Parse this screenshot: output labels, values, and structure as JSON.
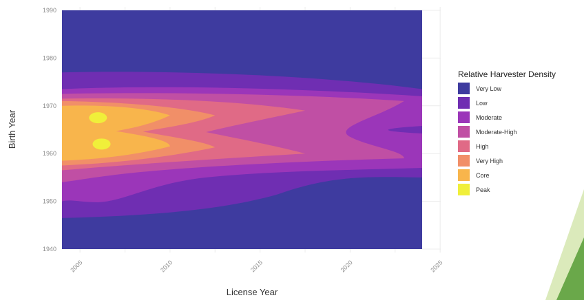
{
  "chart_data": {
    "type": "heatmap",
    "subtype": "2d-density-contour",
    "title": "",
    "xlabel": "License Year",
    "ylabel": "Birth Year",
    "xlim": [
      2004,
      2024
    ],
    "ylim": [
      1940,
      1990
    ],
    "x_ticks": [
      2005,
      2010,
      2015,
      2020,
      2025
    ],
    "y_ticks": [
      1940,
      1950,
      1960,
      1970,
      1980,
      1990
    ],
    "x_tick_rotation": "45 degrees",
    "grid": true,
    "legend": {
      "title": "Relative Harvester Density",
      "placement": "right",
      "levels": [
        {
          "label": "Very Low",
          "color": "#3e3b9f"
        },
        {
          "label": "Low",
          "color": "#6f2eb2"
        },
        {
          "label": "Moderate",
          "color": "#9b36b9"
        },
        {
          "label": "Moderate-High",
          "color": "#c04fa4"
        },
        {
          "label": "High",
          "color": "#e06a86"
        },
        {
          "label": "Very High",
          "color": "#f18f68"
        },
        {
          "label": "Core",
          "color": "#f8b54c"
        },
        {
          "label": "Peak",
          "color": "#f0ef3a"
        }
      ]
    },
    "density_regions": [
      {
        "level": "Very Low",
        "x": [
          2004,
          2024
        ],
        "y": [
          1940,
          1990
        ]
      },
      {
        "level": "Low",
        "x_range": [
          2004,
          2024
        ],
        "birth_year_range_at_start": [
          1946.5,
          1977.0
        ],
        "birth_year_range_at_end": [
          1955.0,
          1973.5
        ]
      },
      {
        "level": "Moderate",
        "x_range": [
          2004,
          2024
        ],
        "birth_year_range_at_start": [
          1950.0,
          1973.5
        ],
        "birth_year_range_at_end": [
          1957.0,
          1972.0
        ]
      },
      {
        "level": "Moderate-High",
        "x_range": [
          2004,
          2023
        ],
        "birth_year_range_at_start": [
          1954.0,
          1972.5
        ],
        "birth_year_range_at_end": [
          1959.0,
          1971.0
        ]
      },
      {
        "level": "High",
        "x_range": [
          2004,
          2017.5
        ],
        "birth_year_range_at_start": [
          1956.5,
          1971.5
        ],
        "birth_year_range_at_end": [
          1960.0,
          1969.0
        ]
      },
      {
        "level": "Very High",
        "x_range": [
          2004,
          2012.5
        ],
        "birth_year_range_at_start": [
          1957.5,
          1971.0
        ]
      },
      {
        "level": "Core",
        "x_range": [
          2004,
          2010
        ],
        "birth_year_range_at_start": [
          1958.5,
          1970.0
        ]
      },
      {
        "level": "Peak",
        "centers": [
          {
            "x": 2006.0,
            "y": 1967.5
          },
          {
            "x": 2006.2,
            "y": 1962.0
          }
        ]
      }
    ]
  }
}
